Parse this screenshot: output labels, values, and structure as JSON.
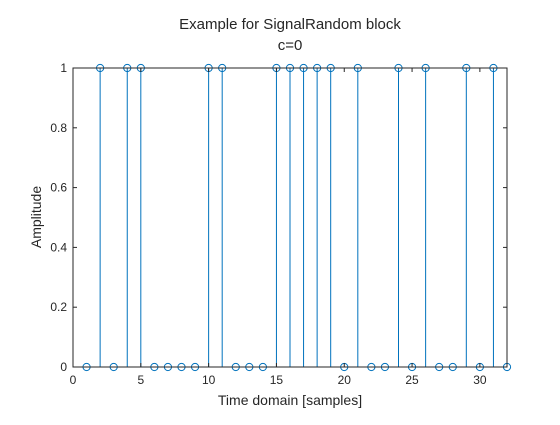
{
  "chart_data": {
    "type": "stem",
    "title": "Example for SignalRandom block",
    "subtitle": "c=0",
    "xlabel": "Time domain [samples]",
    "ylabel": "Amplitude",
    "xlim": [
      0,
      32
    ],
    "ylim": [
      0,
      1
    ],
    "xticks": [
      0,
      5,
      10,
      15,
      20,
      25,
      30
    ],
    "yticks": [
      0,
      0.2,
      0.4,
      0.6,
      0.8,
      1
    ],
    "grid": false,
    "x": [
      1,
      2,
      3,
      4,
      5,
      6,
      7,
      8,
      9,
      10,
      11,
      12,
      13,
      14,
      15,
      16,
      17,
      18,
      19,
      20,
      21,
      22,
      23,
      24,
      25,
      26,
      27,
      28,
      29,
      30,
      31,
      32
    ],
    "values": [
      0,
      1,
      0,
      1,
      1,
      0,
      0,
      0,
      0,
      1,
      1,
      0,
      0,
      0,
      1,
      1,
      1,
      1,
      1,
      0,
      1,
      0,
      0,
      1,
      0,
      1,
      0,
      0,
      1,
      0,
      1,
      0
    ],
    "color": "#0072BD"
  }
}
